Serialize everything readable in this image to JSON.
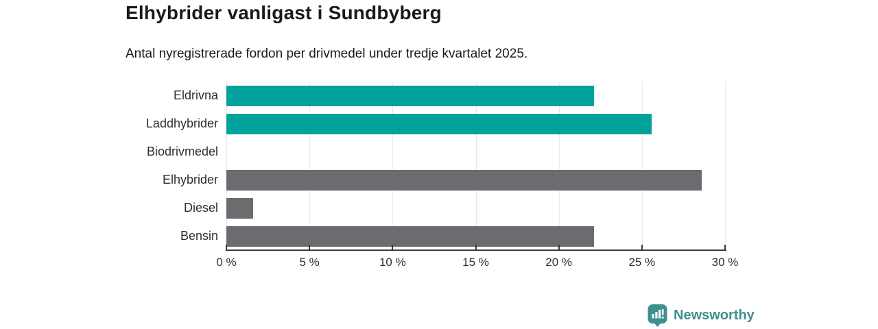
{
  "title": "Elhybrider vanligast i Sundbyberg",
  "subtitle": "Antal nyregistrerade fordon per drivmedel under tredje kvartalet 2025.",
  "chart_data": {
    "type": "bar",
    "orientation": "horizontal",
    "categories": [
      "Eldrivna",
      "Laddhybrider",
      "Biodrivmedel",
      "Elhybrider",
      "Diesel",
      "Bensin"
    ],
    "values": [
      22.1,
      25.6,
      0,
      28.6,
      1.6,
      22.1
    ],
    "bar_colors": [
      "#00a29b",
      "#00a29b",
      "#00a29b",
      "#6b6b70",
      "#6b6b70",
      "#6b6b70"
    ],
    "unit": "%",
    "xlim": [
      0,
      30
    ],
    "x_ticks": [
      0,
      5,
      10,
      15,
      20,
      25,
      30
    ],
    "x_tick_labels": [
      "0 %",
      "5 %",
      "10 %",
      "15 %",
      "20 %",
      "25 %",
      "30 %"
    ],
    "grid": true,
    "legend": "none",
    "title": "Elhybrider vanligast i Sundbyberg",
    "xlabel": "",
    "ylabel": ""
  },
  "colors": {
    "teal": "#00a29b",
    "gray": "#6b6b70",
    "text": "#1a1a1a",
    "axis_text": "#2e2e2e",
    "gridline": "#e8e8e8",
    "axis_line": "#3a3a3a",
    "background": "#ffffff",
    "brand": "#3d918f"
  },
  "branding": {
    "logo_text": "Newsworthy",
    "logo_icon": "bar-chart-speech-bubble-icon"
  }
}
